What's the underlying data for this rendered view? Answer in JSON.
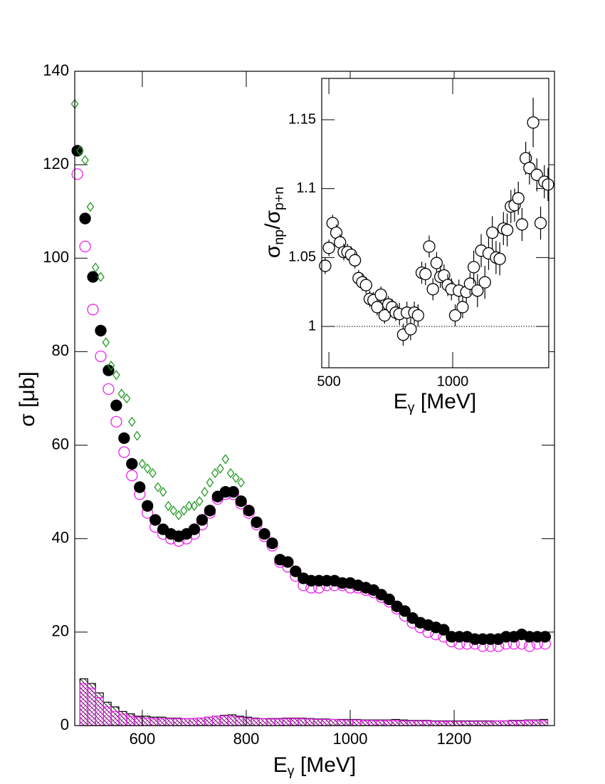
{
  "chart_data": [
    {
      "type": "scatter",
      "xlabel": [
        "E",
        "γ",
        " [MeV]"
      ],
      "ylabel": "σ [μb]",
      "xlim": [
        470,
        1393
      ],
      "ylim": [
        0,
        140
      ],
      "xticks": [
        600,
        800,
        1000,
        1200
      ],
      "yticks": [
        0,
        20,
        40,
        60,
        80,
        100,
        120,
        140
      ],
      "x": [
        475,
        490,
        505,
        520,
        535,
        550,
        565,
        580,
        595,
        610,
        625,
        640,
        655,
        670,
        685,
        700,
        715,
        730,
        745,
        760,
        775,
        790,
        805,
        820,
        835,
        850,
        865,
        880,
        895,
        910,
        925,
        940,
        955,
        970,
        985,
        1000,
        1015,
        1030,
        1045,
        1060,
        1075,
        1090,
        1105,
        1120,
        1135,
        1150,
        1165,
        1180,
        1195,
        1210,
        1225,
        1240,
        1255,
        1270,
        1285,
        1300,
        1315,
        1330,
        1345,
        1360,
        1375
      ],
      "series": [
        {
          "marker": "open-circle",
          "color": "#ee22ee",
          "values": [
            118,
            102.5,
            89,
            79,
            72,
            65,
            58.5,
            53.5,
            49.5,
            45.5,
            42.5,
            41,
            40,
            39.5,
            40,
            41,
            43,
            45.5,
            48.5,
            49.5,
            49.5,
            47.5,
            45.5,
            43,
            40.5,
            38.5,
            35,
            34,
            32,
            30,
            29.5,
            29.5,
            30,
            30,
            30,
            29.5,
            29.5,
            29,
            28.5,
            27.5,
            26.5,
            25,
            23.5,
            22,
            21,
            20,
            19.5,
            19,
            18,
            17.5,
            17.5,
            17.5,
            17,
            17,
            17,
            17.5,
            17.5,
            17.5,
            17,
            17.5,
            17.5
          ]
        },
        {
          "marker": "filled-circle",
          "color": "#000000",
          "values": [
            123,
            108.5,
            96,
            84.5,
            76,
            68.5,
            61.5,
            56,
            51,
            47,
            44,
            42,
            41,
            40.5,
            41,
            42,
            44,
            46,
            49,
            50,
            50,
            48,
            46,
            43.5,
            41,
            39,
            35.5,
            35,
            33,
            31.5,
            31,
            31,
            31,
            31,
            30.5,
            30.5,
            30,
            29.5,
            29,
            28,
            27,
            25.5,
            24.5,
            23,
            22,
            21.5,
            21,
            20.5,
            19,
            19,
            19,
            18.5,
            18.5,
            18.5,
            18.5,
            19,
            19,
            19.5,
            19,
            19,
            19
          ]
        },
        {
          "marker": "open-diamond",
          "color": "#229922",
          "x": [
            470,
            480,
            490,
            500,
            510,
            520,
            530,
            540,
            550,
            560,
            570,
            580,
            590,
            600,
            610,
            620,
            630,
            640,
            650,
            660,
            670,
            680,
            690,
            700,
            710,
            720,
            730,
            740,
            750,
            760,
            770,
            780,
            790
          ],
          "values": [
            133,
            123,
            121,
            111,
            98,
            96,
            82,
            77,
            75,
            71,
            70,
            65,
            62,
            56,
            55,
            54,
            51,
            50,
            47,
            46,
            45,
            46,
            47,
            47,
            48,
            50,
            52,
            54,
            55,
            57,
            54,
            53,
            52
          ]
        }
      ],
      "histograms": {
        "bins": [
          480,
          495,
          510,
          525,
          540,
          555,
          570,
          585,
          600,
          615,
          630,
          645,
          660,
          675,
          690,
          705,
          720,
          735,
          750,
          765,
          780,
          795,
          810,
          825,
          840,
          855,
          870,
          885,
          900,
          915,
          930,
          945,
          960,
          975,
          990,
          1005,
          1020,
          1035,
          1050,
          1065,
          1080,
          1095,
          1110,
          1125,
          1140,
          1155,
          1170,
          1185,
          1200,
          1215,
          1230,
          1245,
          1260,
          1275,
          1290,
          1305,
          1320,
          1335,
          1350,
          1365,
          1380
        ],
        "series": [
          {
            "color": "#000000",
            "hatch": "back",
            "values": [
              10,
              9,
              7,
              5,
              4,
              3,
              2.5,
              2,
              2,
              1.8,
              1.8,
              1.6,
              1.6,
              1.5,
              1.5,
              1.6,
              1.8,
              2,
              2.2,
              2.3,
              2,
              1.8,
              1.6,
              1.5,
              1.5,
              1.5,
              1.6,
              1.6,
              1.6,
              1.5,
              1.4,
              1.4,
              1.3,
              1.3,
              1.3,
              1.3,
              1.2,
              1.2,
              1.2,
              1.2,
              1.3,
              1.2,
              1.1,
              1.1,
              1.1,
              1,
              1,
              1,
              1,
              1,
              1,
              1,
              1,
              1,
              1,
              1.1,
              1.1,
              1.2,
              1.2,
              1.3
            ]
          },
          {
            "color": "#ee22ee",
            "hatch": "forward",
            "values": [
              9,
              8,
              6,
              4,
              3,
              2.5,
              2,
              1.8,
              1.6,
              1.5,
              1.5,
              1.5,
              1.5,
              1.5,
              1.5,
              1.6,
              1.8,
              2,
              2.1,
              2,
              1.8,
              1.6,
              1.5,
              1.5,
              1.4,
              1.4,
              1.5,
              1.5,
              1.5,
              1.4,
              1.3,
              1.3,
              1.3,
              1.2,
              1.2,
              1.2,
              1.1,
              1.1,
              1.1,
              1.1,
              1.1,
              1,
              1,
              1,
              1,
              0.9,
              0.9,
              0.9,
              0.9,
              0.9,
              0.9,
              0.9,
              0.9,
              1,
              1,
              1,
              1,
              1.1,
              1.1,
              1.1
            ]
          }
        ]
      }
    },
    {
      "type": "scatter",
      "xlabel": [
        "E",
        "γ",
        " [MeV]"
      ],
      "ylabel": [
        "σ",
        "np",
        "/σ",
        "p+n"
      ],
      "xlim": [
        471,
        1388
      ],
      "ylim": [
        0.97,
        1.18
      ],
      "xticks": [
        500,
        1000
      ],
      "yticks": [
        1,
        1.05,
        1.1,
        1.15
      ],
      "reference_line": 1,
      "x": [
        485,
        500,
        515,
        530,
        545,
        560,
        575,
        590,
        605,
        620,
        635,
        650,
        665,
        680,
        695,
        710,
        725,
        740,
        755,
        770,
        785,
        800,
        815,
        830,
        845,
        860,
        875,
        890,
        905,
        920,
        935,
        950,
        965,
        980,
        995,
        1010,
        1025,
        1040,
        1055,
        1070,
        1085,
        1100,
        1115,
        1130,
        1145,
        1160,
        1175,
        1190,
        1205,
        1220,
        1235,
        1250,
        1265,
        1280,
        1295,
        1310,
        1325,
        1340,
        1355,
        1370,
        1385
      ],
      "series": [
        {
          "marker": "open-circle",
          "color": "#000000",
          "values": [
            1.044,
            1.057,
            1.075,
            1.068,
            1.061,
            1.054,
            1.054,
            1.052,
            1.048,
            1.035,
            1.032,
            1.03,
            1.02,
            1.019,
            1.014,
            1.023,
            1.008,
            1.016,
            1.014,
            1.01,
            1.009,
            0.994,
            1.01,
            0.998,
            1.01,
            1.008,
            1.039,
            1.038,
            1.058,
            1.027,
            1.046,
            1.036,
            1.037,
            1.03,
            1.027,
            1.008,
            1.026,
            1.014,
            1.025,
            1.031,
            1.043,
            1.026,
            1.055,
            1.032,
            1.053,
            1.068,
            1.05,
            1.049,
            1.071,
            1.07,
            1.087,
            1.088,
            1.093,
            1.074,
            1.122,
            1.115,
            1.148,
            1.11,
            1.075,
            1.105,
            1.103
          ],
          "errors": [
            0.006,
            0.006,
            0.006,
            0.006,
            0.006,
            0.006,
            0.006,
            0.006,
            0.006,
            0.006,
            0.006,
            0.006,
            0.006,
            0.006,
            0.006,
            0.006,
            0.006,
            0.006,
            0.006,
            0.006,
            0.008,
            0.008,
            0.008,
            0.008,
            0.008,
            0.008,
            0.008,
            0.008,
            0.008,
            0.008,
            0.008,
            0.008,
            0.008,
            0.008,
            0.008,
            0.008,
            0.008,
            0.008,
            0.008,
            0.008,
            0.012,
            0.012,
            0.012,
            0.012,
            0.012,
            0.012,
            0.012,
            0.012,
            0.012,
            0.012,
            0.012,
            0.012,
            0.012,
            0.012,
            0.012,
            0.012,
            0.018,
            0.012,
            0.012,
            0.012,
            0.012
          ]
        }
      ]
    }
  ]
}
